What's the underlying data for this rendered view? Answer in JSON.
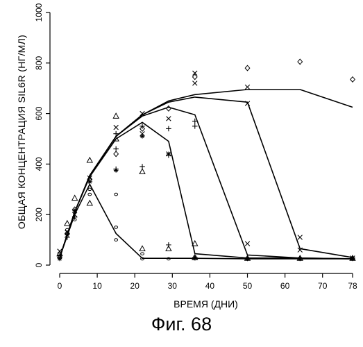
{
  "figure_caption": "Фиг. 68",
  "chart_data": {
    "type": "scatter",
    "xlabel": "ВРЕМЯ (ДНИ)",
    "ylabel": "ОБЩАЯ КОНЦЕНТРАЦИЯ SIL6R (НГ/МЛ)",
    "xlim": [
      0,
      78
    ],
    "ylim": [
      0,
      1000
    ],
    "x_ticks": [
      0,
      10,
      20,
      30,
      40,
      50,
      60,
      70,
      78
    ],
    "y_ticks": [
      0,
      200,
      400,
      600,
      800,
      1000
    ],
    "grid": false,
    "lines": [
      {
        "x": [
          0,
          2,
          4,
          8,
          15,
          22,
          29,
          36,
          50,
          64,
          78
        ],
        "y": [
          30,
          120,
          210,
          355,
          510,
          595,
          650,
          675,
          695,
          695,
          625
        ]
      },
      {
        "x": [
          0,
          2,
          4,
          8,
          15,
          22,
          29,
          36,
          50,
          64,
          78
        ],
        "y": [
          30,
          120,
          210,
          355,
          510,
          595,
          645,
          665,
          645,
          65,
          30
        ]
      },
      {
        "x": [
          0,
          2,
          4,
          8,
          15,
          22,
          29,
          36,
          50,
          64,
          78
        ],
        "y": [
          30,
          120,
          210,
          355,
          510,
          590,
          625,
          595,
          40,
          28,
          25
        ]
      },
      {
        "x": [
          0,
          2,
          4,
          8,
          15,
          22,
          29,
          36,
          50,
          64,
          78
        ],
        "y": [
          30,
          120,
          210,
          350,
          500,
          565,
          490,
          45,
          28,
          28,
          25
        ]
      },
      {
        "x": [
          0,
          2,
          4,
          8,
          15,
          22,
          29,
          36,
          50,
          64,
          78
        ],
        "y": [
          30,
          115,
          200,
          320,
          125,
          27,
          27,
          27,
          25,
          25,
          25
        ]
      }
    ],
    "markers": {
      "triangle": [
        [
          0,
          45
        ],
        [
          2,
          165
        ],
        [
          4,
          265
        ],
        [
          8,
          415
        ],
        [
          8,
          245
        ],
        [
          15,
          590
        ],
        [
          15,
          500
        ],
        [
          22,
          370
        ],
        [
          22,
          65
        ],
        [
          29,
          65
        ],
        [
          36,
          85
        ],
        [
          36,
          30
        ],
        [
          50,
          27
        ],
        [
          64,
          27
        ],
        [
          78,
          27
        ]
      ],
      "circle": [
        [
          0,
          35
        ],
        [
          2,
          140
        ],
        [
          4,
          180
        ],
        [
          8,
          300
        ],
        [
          8,
          280
        ],
        [
          15,
          280
        ],
        [
          15,
          150
        ],
        [
          15,
          100
        ],
        [
          22,
          45
        ],
        [
          22,
          25
        ],
        [
          29,
          25
        ],
        [
          36,
          25
        ],
        [
          50,
          25
        ],
        [
          64,
          25
        ],
        [
          78,
          25
        ]
      ],
      "x": [
        [
          0,
          55
        ],
        [
          2,
          130
        ],
        [
          4,
          200
        ],
        [
          8,
          345
        ],
        [
          15,
          545
        ],
        [
          22,
          600
        ],
        [
          22,
          520
        ],
        [
          29,
          440
        ],
        [
          29,
          580
        ],
        [
          36,
          760
        ],
        [
          36,
          720
        ],
        [
          50,
          705
        ],
        [
          50,
          640
        ],
        [
          50,
          85
        ],
        [
          64,
          110
        ],
        [
          64,
          60
        ],
        [
          78,
          28
        ]
      ],
      "plus": [
        [
          0,
          40
        ],
        [
          2,
          110
        ],
        [
          4,
          190
        ],
        [
          8,
          330
        ],
        [
          15,
          520
        ],
        [
          15,
          460
        ],
        [
          15,
          380
        ],
        [
          22,
          550
        ],
        [
          22,
          390
        ],
        [
          29,
          540
        ],
        [
          29,
          435
        ],
        [
          29,
          80
        ],
        [
          36,
          570
        ],
        [
          36,
          550
        ],
        [
          36,
          30
        ],
        [
          50,
          28
        ],
        [
          64,
          28
        ],
        [
          78,
          28
        ]
      ],
      "diamond": [
        [
          0,
          30
        ],
        [
          2,
          125
        ],
        [
          4,
          220
        ],
        [
          8,
          340
        ],
        [
          15,
          440
        ],
        [
          22,
          540
        ],
        [
          29,
          620
        ],
        [
          36,
          745
        ],
        [
          50,
          780
        ],
        [
          64,
          805
        ],
        [
          78,
          735
        ]
      ],
      "asterisk": [
        [
          0,
          25
        ],
        [
          2,
          120
        ],
        [
          4,
          215
        ],
        [
          8,
          330
        ],
        [
          15,
          375
        ],
        [
          22,
          510
        ],
        [
          29,
          440
        ],
        [
          36,
          30
        ],
        [
          50,
          25
        ],
        [
          64,
          25
        ],
        [
          78,
          25
        ]
      ]
    }
  }
}
